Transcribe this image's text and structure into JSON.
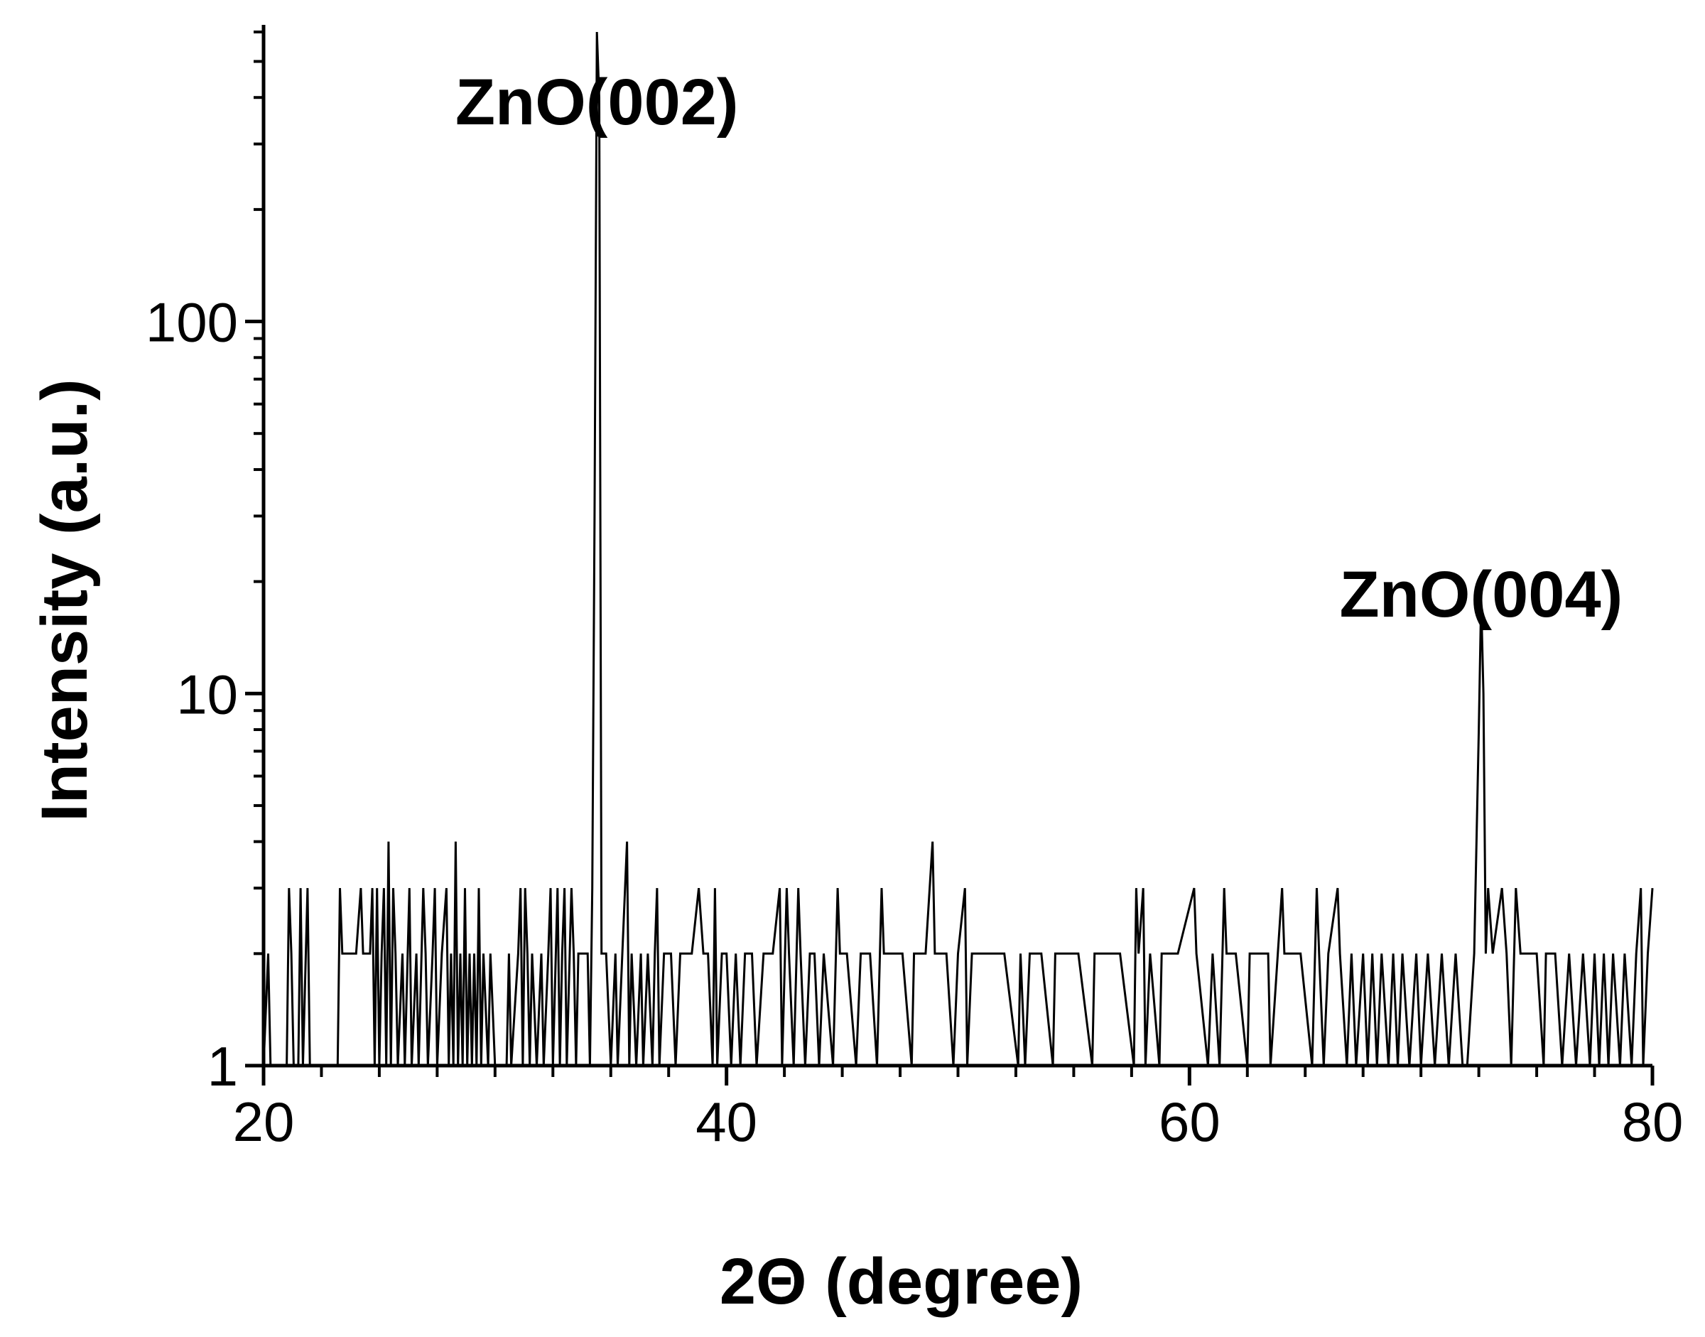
{
  "chart_data": {
    "type": "line",
    "xlabel": "2Θ (degree)",
    "ylabel": "Intensity (a.u.)",
    "xlim": [
      20,
      80
    ],
    "ylim": [
      1,
      600
    ],
    "yscale": "log",
    "grid": false,
    "line_color": "#000000",
    "x_ticks": [
      {
        "value": 20,
        "label": "20"
      },
      {
        "value": 40,
        "label": "40"
      },
      {
        "value": 60,
        "label": "60"
      },
      {
        "value": 80,
        "label": "80"
      }
    ],
    "y_ticks": [
      {
        "value": 1,
        "label": "1"
      },
      {
        "value": 10,
        "label": "10"
      },
      {
        "value": 100,
        "label": "100"
      }
    ],
    "annotations": [
      {
        "text": "ZnO(002)",
        "x": 34.4,
        "y": 600
      },
      {
        "text": "ZnO(004)",
        "x": 72.6,
        "y": 18
      }
    ],
    "series": [
      {
        "points": [
          [
            20.0,
            1
          ],
          [
            20.2,
            2
          ],
          [
            20.3,
            1
          ],
          [
            21.0,
            1
          ],
          [
            21.1,
            3
          ],
          [
            21.2,
            2
          ],
          [
            21.3,
            1
          ],
          [
            21.5,
            1
          ],
          [
            21.6,
            3
          ],
          [
            21.7,
            1
          ],
          [
            21.9,
            3
          ],
          [
            22.0,
            1
          ],
          [
            23.2,
            1
          ],
          [
            23.3,
            3
          ],
          [
            23.4,
            2
          ],
          [
            23.5,
            2
          ],
          [
            24.0,
            2
          ],
          [
            24.2,
            3
          ],
          [
            24.3,
            2
          ],
          [
            24.6,
            2
          ],
          [
            24.7,
            3
          ],
          [
            24.8,
            1
          ],
          [
            24.9,
            3
          ],
          [
            25.0,
            1
          ],
          [
            25.1,
            2
          ],
          [
            25.2,
            3
          ],
          [
            25.3,
            1
          ],
          [
            25.4,
            4
          ],
          [
            25.5,
            1
          ],
          [
            25.6,
            3
          ],
          [
            25.7,
            2
          ],
          [
            25.8,
            1
          ],
          [
            26.0,
            2
          ],
          [
            26.1,
            1
          ],
          [
            26.3,
            3
          ],
          [
            26.4,
            1
          ],
          [
            26.6,
            2
          ],
          [
            26.7,
            1
          ],
          [
            26.9,
            3
          ],
          [
            27.0,
            2
          ],
          [
            27.1,
            1
          ],
          [
            27.3,
            2
          ],
          [
            27.4,
            3
          ],
          [
            27.5,
            1
          ],
          [
            27.7,
            2
          ],
          [
            27.9,
            3
          ],
          [
            28.0,
            1
          ],
          [
            28.1,
            2
          ],
          [
            28.2,
            1
          ],
          [
            28.3,
            4
          ],
          [
            28.4,
            1
          ],
          [
            28.5,
            2
          ],
          [
            28.6,
            1
          ],
          [
            28.7,
            3
          ],
          [
            28.8,
            1
          ],
          [
            28.9,
            2
          ],
          [
            29.0,
            1
          ],
          [
            29.1,
            2
          ],
          [
            29.2,
            1
          ],
          [
            29.3,
            3
          ],
          [
            29.4,
            1
          ],
          [
            29.5,
            2
          ],
          [
            29.7,
            1
          ],
          [
            29.8,
            2
          ],
          [
            30.0,
            1
          ],
          [
            30.5,
            1
          ],
          [
            30.6,
            2
          ],
          [
            30.7,
            1
          ],
          [
            31.0,
            2
          ],
          [
            31.1,
            3
          ],
          [
            31.2,
            1
          ],
          [
            31.3,
            3
          ],
          [
            31.4,
            2
          ],
          [
            31.5,
            1
          ],
          [
            31.6,
            2
          ],
          [
            31.8,
            1
          ],
          [
            32.0,
            2
          ],
          [
            32.1,
            1
          ],
          [
            32.3,
            2
          ],
          [
            32.4,
            3
          ],
          [
            32.5,
            1
          ],
          [
            32.7,
            3
          ],
          [
            32.8,
            1
          ],
          [
            32.9,
            2
          ],
          [
            33.0,
            3
          ],
          [
            33.1,
            1
          ],
          [
            33.3,
            3
          ],
          [
            33.4,
            2
          ],
          [
            33.5,
            1
          ],
          [
            33.6,
            2
          ],
          [
            33.8,
            2
          ],
          [
            34.0,
            2
          ],
          [
            34.1,
            1
          ],
          [
            34.2,
            3
          ],
          [
            34.3,
            30
          ],
          [
            34.4,
            600
          ],
          [
            34.5,
            400
          ],
          [
            34.6,
            2
          ],
          [
            34.8,
            2
          ],
          [
            35.0,
            1
          ],
          [
            35.2,
            2
          ],
          [
            35.3,
            1
          ],
          [
            35.5,
            2
          ],
          [
            35.7,
            4
          ],
          [
            35.8,
            1
          ],
          [
            35.9,
            2
          ],
          [
            36.1,
            1
          ],
          [
            36.3,
            2
          ],
          [
            36.4,
            1
          ],
          [
            36.6,
            2
          ],
          [
            36.8,
            1
          ],
          [
            36.9,
            2
          ],
          [
            37.0,
            3
          ],
          [
            37.1,
            1
          ],
          [
            37.3,
            2
          ],
          [
            37.6,
            2
          ],
          [
            37.8,
            1
          ],
          [
            38.0,
            2
          ],
          [
            38.3,
            2
          ],
          [
            38.5,
            2
          ],
          [
            38.8,
            3
          ],
          [
            39.0,
            2
          ],
          [
            39.2,
            2
          ],
          [
            39.4,
            1
          ],
          [
            39.5,
            3
          ],
          [
            39.6,
            1
          ],
          [
            39.8,
            2
          ],
          [
            40.0,
            2
          ],
          [
            40.2,
            1
          ],
          [
            40.4,
            2
          ],
          [
            40.6,
            1
          ],
          [
            40.8,
            2
          ],
          [
            41.1,
            2
          ],
          [
            41.3,
            1
          ],
          [
            41.6,
            2
          ],
          [
            42.0,
            2
          ],
          [
            42.3,
            3
          ],
          [
            42.4,
            1
          ],
          [
            42.6,
            3
          ],
          [
            42.7,
            2
          ],
          [
            42.9,
            1
          ],
          [
            43.1,
            3
          ],
          [
            43.2,
            2
          ],
          [
            43.4,
            1
          ],
          [
            43.6,
            2
          ],
          [
            43.8,
            2
          ],
          [
            44.0,
            1
          ],
          [
            44.2,
            2
          ],
          [
            44.6,
            1
          ],
          [
            44.8,
            3
          ],
          [
            44.9,
            2
          ],
          [
            45.2,
            2
          ],
          [
            45.6,
            1
          ],
          [
            45.8,
            2
          ],
          [
            46.2,
            2
          ],
          [
            46.5,
            1
          ],
          [
            46.7,
            3
          ],
          [
            46.8,
            2
          ],
          [
            47.2,
            2
          ],
          [
            47.6,
            2
          ],
          [
            48.0,
            1
          ],
          [
            48.1,
            2
          ],
          [
            48.3,
            2
          ],
          [
            48.6,
            2
          ],
          [
            48.9,
            4
          ],
          [
            49.0,
            2
          ],
          [
            49.2,
            2
          ],
          [
            49.5,
            2
          ],
          [
            49.8,
            1
          ],
          [
            50.0,
            2
          ],
          [
            50.3,
            3
          ],
          [
            50.4,
            1
          ],
          [
            50.6,
            2
          ],
          [
            52.0,
            2
          ],
          [
            52.6,
            1
          ],
          [
            52.7,
            2
          ],
          [
            52.9,
            1
          ],
          [
            53.1,
            2
          ],
          [
            53.6,
            2
          ],
          [
            54.1,
            1
          ],
          [
            54.2,
            2
          ],
          [
            55.2,
            2
          ],
          [
            55.8,
            1
          ],
          [
            55.9,
            2
          ],
          [
            56.5,
            2
          ],
          [
            57.0,
            2
          ],
          [
            57.6,
            1
          ],
          [
            57.7,
            3
          ],
          [
            57.8,
            2
          ],
          [
            58.0,
            3
          ],
          [
            58.1,
            1
          ],
          [
            58.3,
            2
          ],
          [
            58.7,
            1
          ],
          [
            58.8,
            2
          ],
          [
            59.5,
            2
          ],
          [
            60.2,
            3
          ],
          [
            60.3,
            2
          ],
          [
            60.8,
            1
          ],
          [
            61.0,
            2
          ],
          [
            61.3,
            1
          ],
          [
            61.5,
            3
          ],
          [
            61.6,
            2
          ],
          [
            62.0,
            2
          ],
          [
            62.5,
            1
          ],
          [
            62.6,
            2
          ],
          [
            63.0,
            2
          ],
          [
            63.4,
            2
          ],
          [
            63.5,
            1
          ],
          [
            64.0,
            3
          ],
          [
            64.1,
            2
          ],
          [
            64.8,
            2
          ],
          [
            65.3,
            1
          ],
          [
            65.5,
            3
          ],
          [
            65.6,
            2
          ],
          [
            65.8,
            1
          ],
          [
            66.0,
            2
          ],
          [
            66.4,
            3
          ],
          [
            66.5,
            2
          ],
          [
            66.8,
            1
          ],
          [
            67.0,
            2
          ],
          [
            67.2,
            1
          ],
          [
            67.5,
            2
          ],
          [
            67.7,
            1
          ],
          [
            67.9,
            2
          ],
          [
            68.1,
            1
          ],
          [
            68.3,
            2
          ],
          [
            68.6,
            1
          ],
          [
            68.8,
            2
          ],
          [
            69.0,
            1
          ],
          [
            69.2,
            2
          ],
          [
            69.5,
            1
          ],
          [
            69.8,
            2
          ],
          [
            70.0,
            1
          ],
          [
            70.3,
            2
          ],
          [
            70.6,
            1
          ],
          [
            70.9,
            2
          ],
          [
            71.2,
            1
          ],
          [
            71.5,
            2
          ],
          [
            71.8,
            1
          ],
          [
            72.0,
            1
          ],
          [
            72.3,
            2
          ],
          [
            72.5,
            8
          ],
          [
            72.6,
            18
          ],
          [
            72.7,
            10
          ],
          [
            72.8,
            2
          ],
          [
            72.9,
            3
          ],
          [
            73.1,
            2
          ],
          [
            73.5,
            3
          ],
          [
            73.7,
            2
          ],
          [
            73.9,
            1
          ],
          [
            74.1,
            3
          ],
          [
            74.3,
            2
          ],
          [
            74.6,
            2
          ],
          [
            75.0,
            2
          ],
          [
            75.3,
            1
          ],
          [
            75.4,
            2
          ],
          [
            75.8,
            2
          ],
          [
            76.1,
            1
          ],
          [
            76.4,
            2
          ],
          [
            76.7,
            1
          ],
          [
            77.0,
            2
          ],
          [
            77.3,
            1
          ],
          [
            77.5,
            2
          ],
          [
            77.7,
            1
          ],
          [
            77.9,
            2
          ],
          [
            78.1,
            1
          ],
          [
            78.3,
            2
          ],
          [
            78.6,
            1
          ],
          [
            78.8,
            2
          ],
          [
            79.1,
            1
          ],
          [
            79.3,
            2
          ],
          [
            79.5,
            3
          ],
          [
            79.6,
            1
          ],
          [
            79.8,
            2
          ],
          [
            80.0,
            3
          ]
        ]
      }
    ]
  }
}
